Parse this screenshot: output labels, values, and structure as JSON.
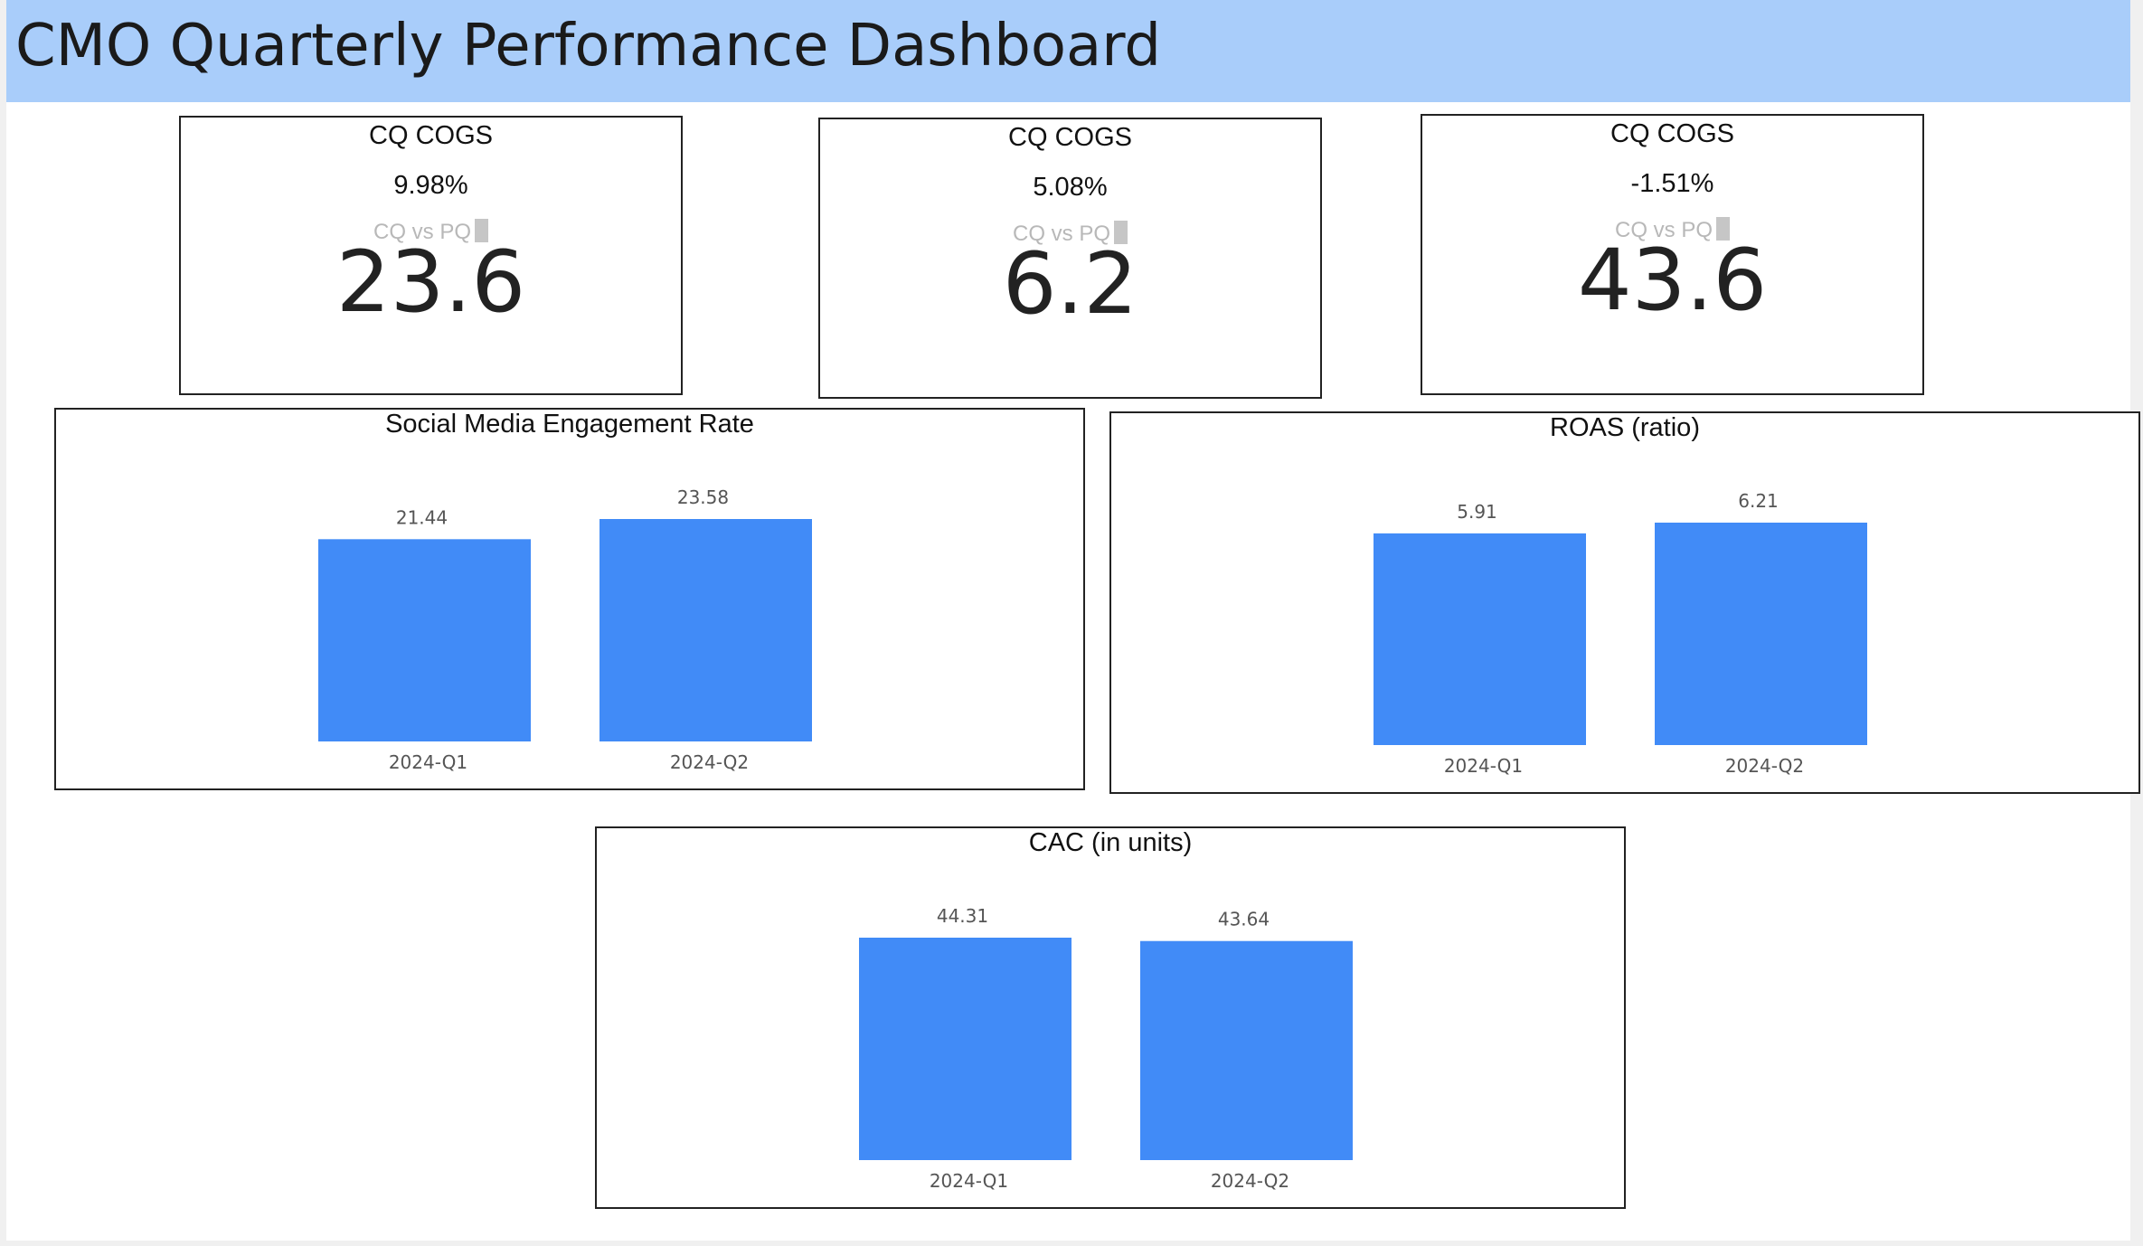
{
  "dashboard": {
    "title": "CMO Quarterly Performance Dashboard"
  },
  "kpi_cards": [
    {
      "title": "CQ COGS",
      "pct_change": "9.98%",
      "comparison_label": "CQ vs PQ",
      "value": "23.6"
    },
    {
      "title": "CQ COGS",
      "pct_change": "5.08%",
      "comparison_label": "CQ vs PQ",
      "value": "6.2"
    },
    {
      "title": "CQ COGS",
      "pct_change": "-1.51%",
      "comparison_label": "CQ vs PQ",
      "value": "43.6"
    }
  ],
  "colors": {
    "bar": "#418bf7",
    "header": "#a9cdfa"
  },
  "chart_data": [
    {
      "type": "bar",
      "title": "Social Media Engagement Rate",
      "categories": [
        "2024-Q1",
        "2024-Q2"
      ],
      "values": [
        21.44,
        23.58
      ],
      "value_labels": [
        "21.44",
        "23.58"
      ],
      "ylim": [
        0,
        23.58
      ]
    },
    {
      "type": "bar",
      "title": "ROAS (ratio)",
      "categories": [
        "2024-Q1",
        "2024-Q2"
      ],
      "values": [
        5.91,
        6.21
      ],
      "value_labels": [
        "5.91",
        "6.21"
      ],
      "ylim": [
        0,
        6.21
      ]
    },
    {
      "type": "bar",
      "title": "CAC (in units)",
      "categories": [
        "2024-Q1",
        "2024-Q2"
      ],
      "values": [
        44.31,
        43.64
      ],
      "value_labels": [
        "44.31",
        "43.64"
      ],
      "ylim": [
        0,
        44.31
      ]
    }
  ]
}
